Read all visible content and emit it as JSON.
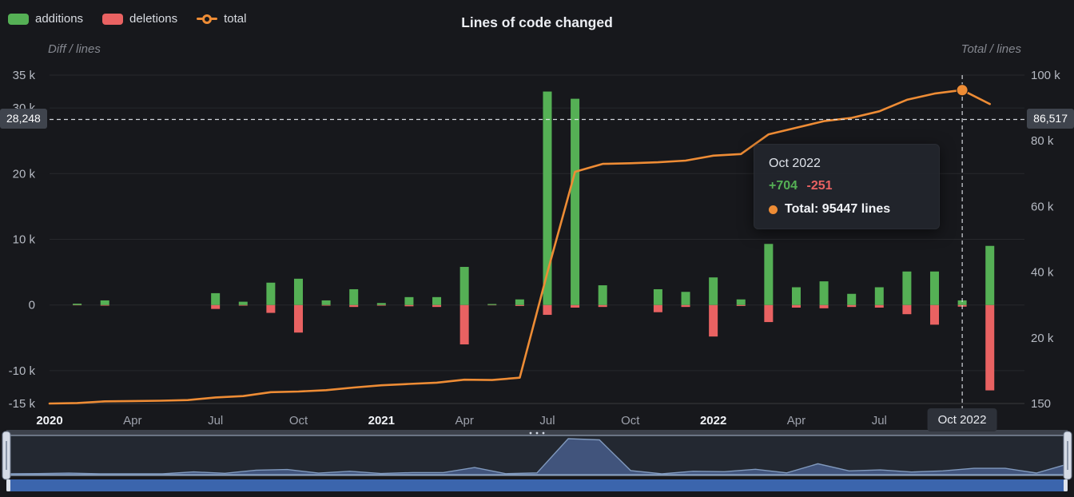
{
  "title": "Lines of code changed",
  "legend": {
    "additions": "additions",
    "deletions": "deletions",
    "total": "total"
  },
  "axis_names": {
    "left": "Diff / lines",
    "right": "Total / lines"
  },
  "crosshair": {
    "left_label": "28,248",
    "right_label": "86,517",
    "x_label": "Oct 2022",
    "left_value": 28248,
    "right_value": 86517,
    "x_index": 33
  },
  "tooltip": {
    "title": "Oct 2022",
    "additions": "+704",
    "deletions": "-251",
    "total": "Total: 95447 lines"
  },
  "colors": {
    "additions": "#55b055",
    "deletions": "#e96262",
    "total": "#ee8c35",
    "background": "#17181c",
    "navigator_area": "#41547c",
    "navigator_line": "#8099bd",
    "scrollbar": "#3b65ad",
    "crosshair_label_bg": "#3f444d"
  },
  "chart_data": {
    "type": "bar",
    "title": "Lines of code changed",
    "xlabel": "",
    "ylabel_left": "Diff / lines",
    "ylabel_right": "Total / lines",
    "legend_position": "top-left",
    "grid": true,
    "x": [
      "2020-01",
      "2020-02",
      "2020-03",
      "2020-04",
      "2020-05",
      "2020-06",
      "2020-07",
      "2020-08",
      "2020-09",
      "2020-10",
      "2020-11",
      "2020-12",
      "2021-01",
      "2021-02",
      "2021-03",
      "2021-04",
      "2021-05",
      "2021-06",
      "2021-07",
      "2021-08",
      "2021-09",
      "2021-10",
      "2021-11",
      "2021-12",
      "2022-01",
      "2022-02",
      "2022-03",
      "2022-04",
      "2022-05",
      "2022-06",
      "2022-07",
      "2022-08",
      "2022-09",
      "2022-10",
      "2022-11"
    ],
    "x_ticks": [
      {
        "index": 0,
        "label": "2020",
        "bold": true
      },
      {
        "index": 3,
        "label": "Apr"
      },
      {
        "index": 6,
        "label": "Jul"
      },
      {
        "index": 9,
        "label": "Oct"
      },
      {
        "index": 12,
        "label": "2021",
        "bold": true
      },
      {
        "index": 15,
        "label": "Apr"
      },
      {
        "index": 18,
        "label": "Jul"
      },
      {
        "index": 21,
        "label": "Oct"
      },
      {
        "index": 24,
        "label": "2022",
        "bold": true
      },
      {
        "index": 27,
        "label": "Apr"
      },
      {
        "index": 30,
        "label": "Jul"
      },
      {
        "index": 33,
        "label": "Oct 2022",
        "boxed": true
      }
    ],
    "series": [
      {
        "name": "additions",
        "type": "bar",
        "yaxis": "left",
        "values": [
          0,
          200,
          700,
          0,
          0,
          0,
          1800,
          500,
          3400,
          4000,
          700,
          2400,
          300,
          1200,
          1200,
          5800,
          150,
          850,
          32500,
          31400,
          3000,
          0,
          2400,
          2000,
          4200,
          850,
          9300,
          2700,
          3600,
          1700,
          2700,
          5100,
          5100,
          704,
          9000
        ]
      },
      {
        "name": "deletions",
        "type": "bar",
        "yaxis": "left",
        "values": [
          0,
          -50,
          -100,
          0,
          0,
          0,
          -600,
          -100,
          -1200,
          -4200,
          -100,
          -300,
          -100,
          -200,
          -300,
          -6000,
          -50,
          -150,
          -1500,
          -400,
          -300,
          0,
          -1100,
          -300,
          -4800,
          -150,
          -2600,
          -400,
          -500,
          -300,
          -400,
          -1400,
          -3000,
          -251,
          -13000
        ]
      },
      {
        "name": "total",
        "type": "line",
        "yaxis": "right",
        "values": [
          150,
          300,
          800,
          900,
          1000,
          1200,
          2000,
          2400,
          3600,
          3800,
          4200,
          5000,
          5700,
          6100,
          6500,
          7400,
          7300,
          8000,
          40000,
          70600,
          73000,
          73200,
          73500,
          74000,
          75500,
          76000,
          82000,
          84000,
          86000,
          87000,
          89000,
          92500,
          94400,
          95447,
          91200
        ],
        "highlight": {
          "index": 33,
          "value": 95447
        }
      }
    ],
    "left_ylim": [
      -15000,
      35000
    ],
    "right_ylim": [
      150,
      100000
    ],
    "left_ticks": [
      {
        "value": 35000,
        "label": "35 k"
      },
      {
        "value": 30000,
        "label": "30 k"
      },
      {
        "value": 20000,
        "label": "20 k"
      },
      {
        "value": 10000,
        "label": "10 k"
      },
      {
        "value": 0,
        "label": "0"
      },
      {
        "value": -10000,
        "label": "-10 k"
      },
      {
        "value": -15000,
        "label": "-15 k"
      }
    ],
    "right_ticks": [
      {
        "value": 100000,
        "label": "100 k"
      },
      {
        "value": 80030,
        "label": "80 k"
      },
      {
        "value": 60060,
        "label": "60 k"
      },
      {
        "value": 40090,
        "label": "40 k"
      },
      {
        "value": 20120,
        "label": "20 k"
      },
      {
        "value": 150,
        "label": "150"
      }
    ]
  }
}
